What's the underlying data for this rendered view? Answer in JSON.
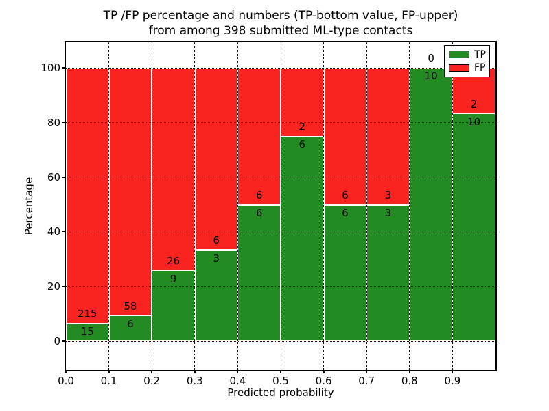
{
  "title": {
    "line1": "TP /FP percentage and numbers (TP-bottom value, FP-upper)",
    "line2": "from among 398 submitted ML-type contacts"
  },
  "chart_data": {
    "type": "bar",
    "stacked": true,
    "title": "TP /FP percentage and numbers (TP-bottom value, FP-upper)\nfrom among 398 submitted ML-type contacts",
    "xlabel": "Predicted probability",
    "ylabel": "Percentage",
    "total_contacts": 398,
    "bin_edges": [
      0.0,
      0.1,
      0.2,
      0.3,
      0.4,
      0.5,
      0.6,
      0.7,
      0.8,
      0.9,
      1.0
    ],
    "x_tick_labels": [
      "0.0",
      "0.1",
      "0.2",
      "0.3",
      "0.4",
      "0.5",
      "0.6",
      "0.7",
      "0.8",
      "0.9"
    ],
    "y_tick_values": [
      0,
      20,
      40,
      60,
      80,
      100
    ],
    "xlim": [
      0.0,
      1.0
    ],
    "ylim": [
      -10.5,
      109.0
    ],
    "grid": "dotted",
    "bar_unit": "percent of bin total (TP+FP stack to 100%)",
    "series": [
      {
        "name": "TP",
        "color": "#228b22",
        "values": [
          15,
          6,
          9,
          3,
          6,
          6,
          6,
          3,
          10,
          10
        ]
      },
      {
        "name": "FP",
        "color": "#f92420",
        "values": [
          215,
          58,
          26,
          6,
          6,
          2,
          6,
          3,
          0,
          2
        ]
      }
    ],
    "tp_percent_per_bin": [
      6.5,
      9.4,
      25.7,
      33.3,
      50.0,
      75.0,
      50.0,
      50.0,
      100.0,
      83.3
    ],
    "legend": {
      "position": "upper right",
      "entries": [
        {
          "label": "TP",
          "color": "#228b22"
        },
        {
          "label": "FP",
          "color": "#f92420"
        }
      ]
    }
  }
}
